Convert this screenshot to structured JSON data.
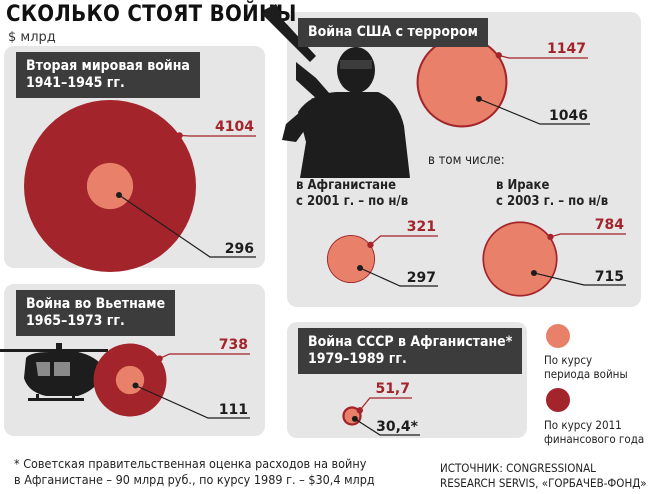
{
  "header": {
    "title": "СКОЛЬКО СТОЯТ ВОЙНЫ",
    "unit": "$ млрд"
  },
  "colors": {
    "period_rate": "#e8806a",
    "rate_2011": "#a3242a",
    "panel": "#e6e6e6",
    "header": "#3c3c3c",
    "silhouette": "#1d1d1d"
  },
  "icons": [
    "soldier-silhouette-icon",
    "helicopter-silhouette-icon"
  ],
  "chart_data": [
    {
      "type": "proportional-circles",
      "title": "Вторая мировая война\n1941–1945 гг.",
      "period_rate": 296,
      "rate_2011": 4104,
      "labels": {
        "period_rate": "296",
        "rate_2011": "4104"
      }
    },
    {
      "type": "proportional-circles",
      "title": "Война во Вьетнаме\n1965–1973 гг.",
      "period_rate": 111,
      "rate_2011": 738,
      "labels": {
        "period_rate": "111",
        "rate_2011": "738"
      }
    },
    {
      "type": "proportional-circles",
      "title": "Война США с террором",
      "period_rate": 1046,
      "rate_2011": 1147,
      "labels": {
        "period_rate": "1046",
        "rate_2011": "1147"
      }
    },
    {
      "type": "proportional-circles",
      "title": "в Афганистане\nс 2001 г. – по н/в",
      "period_rate": 297,
      "rate_2011": 321,
      "labels": {
        "period_rate": "297",
        "rate_2011": "321"
      }
    },
    {
      "type": "proportional-circles",
      "title": "в Ираке\nс 2003 г. – по н/в",
      "period_rate": 715,
      "rate_2011": 784,
      "labels": {
        "period_rate": "715",
        "rate_2011": "784"
      }
    },
    {
      "type": "proportional-circles",
      "title": "Война СССР в Афганистане*\n1979–1989 гг.",
      "period_rate": 30.4,
      "rate_2011": 51.7,
      "labels": {
        "period_rate": "30,4*",
        "rate_2011": "51,7"
      }
    }
  ],
  "including_label": "в том числе:",
  "legend": {
    "period_rate": "По курсу\nпериода войны",
    "rate_2011": "По курсу 2011\nфинансового года"
  },
  "footnote": "* Советская правительственная оценка расходов на войну\nв Афганистане – 90 млрд руб., по курсу 1989 г. – $30,4 млрд",
  "source": "ИСТОЧНИК: CONGRESSIONAL\nRESEARCH SERVIS, «ГОРБАЧЕВ-ФОНД»"
}
